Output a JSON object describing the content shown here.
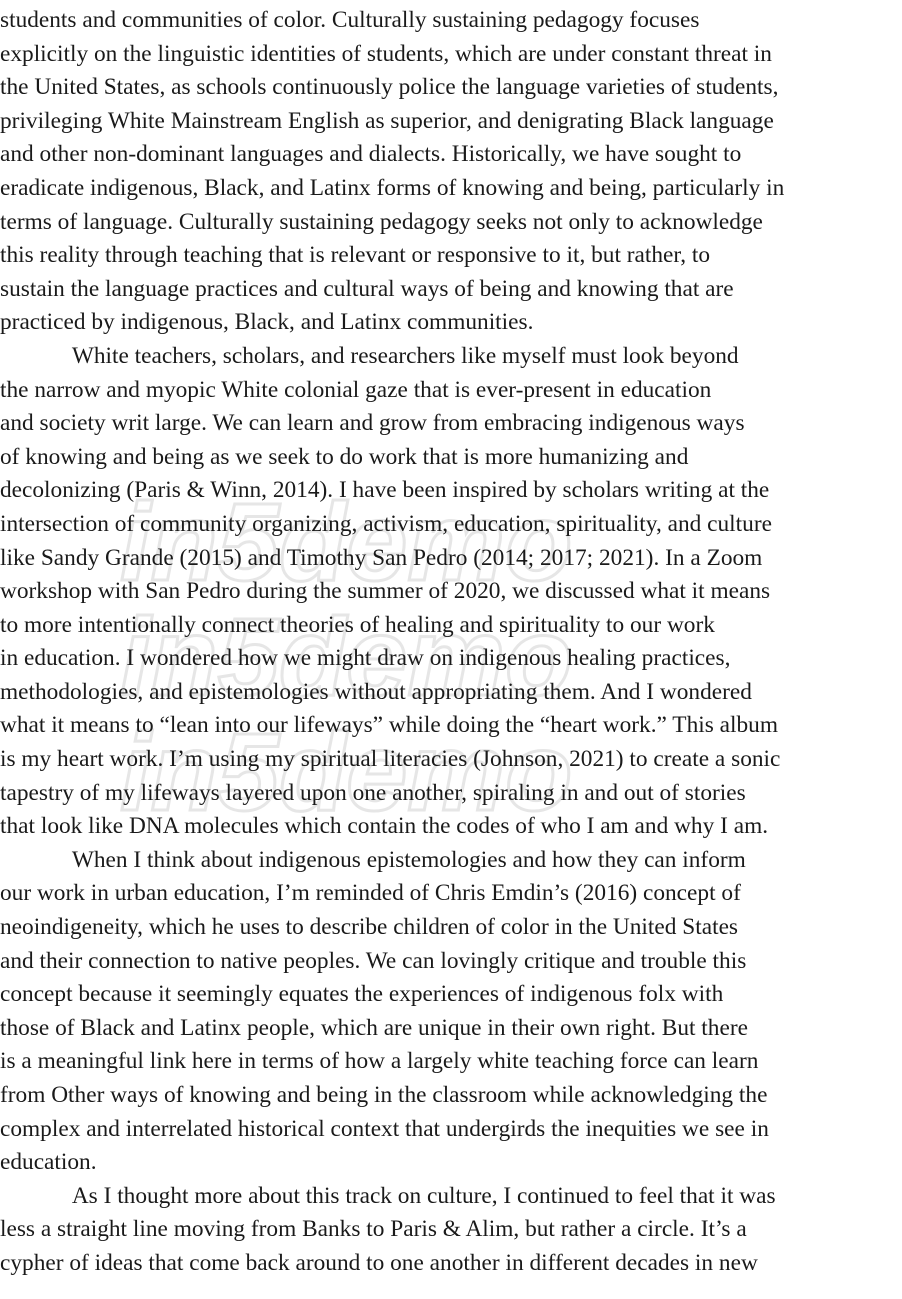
{
  "lines": [
    {
      "text": "students and communities of color. Culturally sustaining pedagogy focuses",
      "indent": false
    },
    {
      "text": "explicitly on the linguistic identities of students, which are under constant threat in",
      "indent": false
    },
    {
      "text": "the United States, as schools continuously police the language varieties of students,",
      "indent": false
    },
    {
      "text": "privileging White Mainstream English as superior, and denigrating Black language",
      "indent": false
    },
    {
      "text": "and other non-dominant languages and dialects. Historically, we have sought to",
      "indent": false
    },
    {
      "text": "eradicate indigenous, Black, and Latinx forms of knowing and being, particularly in",
      "indent": false
    },
    {
      "text": "terms of language. Culturally sustaining pedagogy seeks not only to acknowledge",
      "indent": false
    },
    {
      "text": "this reality through teaching that is relevant or responsive to it, but rather, to",
      "indent": false
    },
    {
      "text": "sustain the language practices and cultural ways of being and knowing that are",
      "indent": false
    },
    {
      "text": "practiced by indigenous, Black, and Latinx communities.",
      "indent": false
    },
    {
      "text": "White teachers, scholars, and researchers like myself must look beyond",
      "indent": true
    },
    {
      "text": "the narrow and myopic White colonial gaze that is ever-present in education",
      "indent": false
    },
    {
      "text": "and society writ large. We can learn and grow from embracing indigenous ways",
      "indent": false
    },
    {
      "text": "of knowing and being as we seek to do work that is more humanizing and",
      "indent": false
    },
    {
      "text": "decolonizing (Paris & Winn, 2014). I have been inspired by scholars writing at the",
      "indent": false
    },
    {
      "text": "intersection of community organizing, activism, education, spirituality, and culture",
      "indent": false
    },
    {
      "text": "like Sandy Grande (2015) and Timothy San Pedro (2014; 2017; 2021). In a Zoom",
      "indent": false
    },
    {
      "text": "workshop with San Pedro during the summer of 2020, we discussed what it means",
      "indent": false
    },
    {
      "text": "to more intentionally connect theories of healing and spirituality to our work",
      "indent": false
    },
    {
      "text": "in education. I wondered how we might draw on indigenous healing practices,",
      "indent": false
    },
    {
      "text": "methodologies, and epistemologies without appropriating them. And I wondered",
      "indent": false
    },
    {
      "text": "what it means to “lean into our lifeways” while doing the “heart work.” This album",
      "indent": false
    },
    {
      "text": "is my heart work. I’m using my spiritual literacies (Johnson, 2021) to create a sonic",
      "indent": false
    },
    {
      "text": "tapestry of my lifeways layered upon one another, spiraling in and out of stories",
      "indent": false
    },
    {
      "text": "that look like DNA molecules which contain the codes of who I am and why I am.",
      "indent": false
    },
    {
      "text": "When I think about indigenous epistemologies and how they can inform",
      "indent": true
    },
    {
      "text": "our work in urban education, I’m reminded of Chris Emdin’s (2016) concept of",
      "indent": false
    },
    {
      "text": "neoindigeneity, which he uses to describe children of color in the United States",
      "indent": false
    },
    {
      "text": "and their connection to native peoples. We can lovingly critique and trouble this",
      "indent": false
    },
    {
      "text": "concept because it seemingly equates the experiences of indigenous folx with",
      "indent": false
    },
    {
      "text": "those of Black and Latinx people, which are unique in their own right. But there",
      "indent": false
    },
    {
      "text": "is a meaningful link here in terms of how a largely white teaching force can learn",
      "indent": false
    },
    {
      "text": "from Other ways of knowing and being in the classroom while acknowledging the",
      "indent": false
    },
    {
      "text": "complex and interrelated historical context that undergirds the inequities we see in",
      "indent": false
    },
    {
      "text": "education.",
      "indent": false
    },
    {
      "text": "As I thought more about this track on culture, I continued to feel that it was",
      "indent": true
    },
    {
      "text": "less a straight line moving from Banks to Paris & Alim, but rather a circle. It’s a",
      "indent": false
    },
    {
      "text": "cypher of ideas that come back around to one another in different decades in new",
      "indent": false
    }
  ],
  "watermark": {
    "text": "in5demo",
    "color": "#ececec"
  }
}
